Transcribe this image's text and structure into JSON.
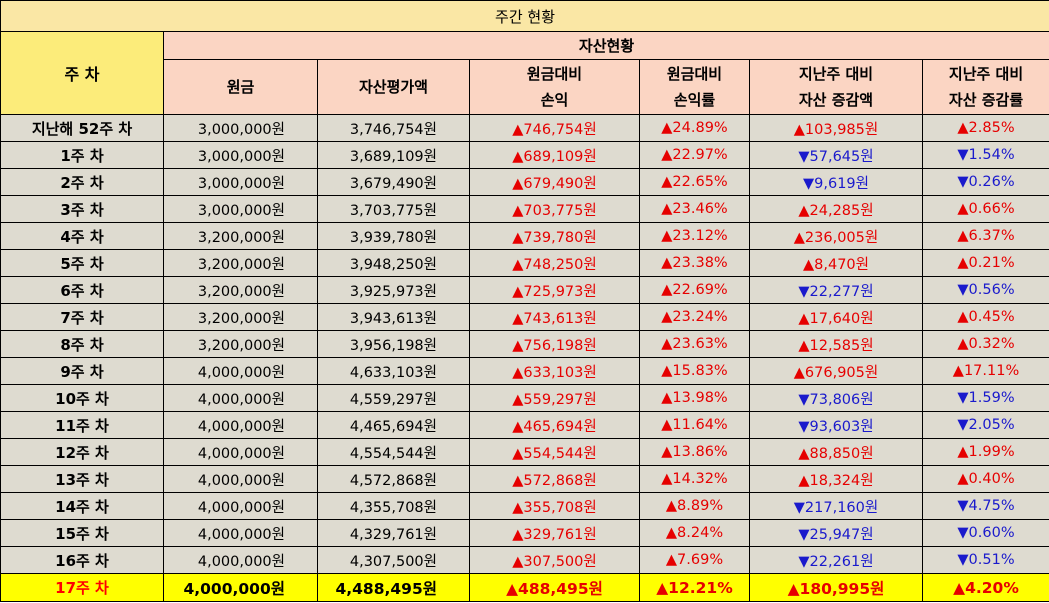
{
  "title": "주간 현황",
  "week_header": "주 차",
  "group_header": "자산현황",
  "columns": [
    {
      "line1": "원금",
      "line2": ""
    },
    {
      "line1": "자산평가액",
      "line2": ""
    },
    {
      "line1": "원금대비",
      "line2": "손익"
    },
    {
      "line1": "원금대비",
      "line2": "손익률"
    },
    {
      "line1": "지난주 대비",
      "line2": "자산 증감액"
    },
    {
      "line1": "지난주 대비",
      "line2": "자산 증감률"
    }
  ],
  "colors": {
    "up": "#e60000",
    "down": "#1a1acc",
    "highlight": "#ffff00",
    "header": "#fbd5c3",
    "title": "#fae7a5"
  },
  "rows": [
    {
      "week": "지난해 52주 차",
      "principal": "3,000,000원",
      "valuation": "3,746,754원",
      "pnl": "▲746,754원",
      "pnl_rate": "▲24.89%",
      "change": "▲103,985원",
      "change_dir": "up",
      "change_rate": "▲2.85%"
    },
    {
      "week": "1주 차",
      "principal": "3,000,000원",
      "valuation": "3,689,109원",
      "pnl": "▲689,109원",
      "pnl_rate": "▲22.97%",
      "change": "▼57,645원",
      "change_dir": "down",
      "change_rate": "▼1.54%"
    },
    {
      "week": "2주 차",
      "principal": "3,000,000원",
      "valuation": "3,679,490원",
      "pnl": "▲679,490원",
      "pnl_rate": "▲22.65%",
      "change": "▼9,619원",
      "change_dir": "down",
      "change_rate": "▼0.26%"
    },
    {
      "week": "3주 차",
      "principal": "3,000,000원",
      "valuation": "3,703,775원",
      "pnl": "▲703,775원",
      "pnl_rate": "▲23.46%",
      "change": "▲24,285원",
      "change_dir": "up",
      "change_rate": "▲0.66%"
    },
    {
      "week": "4주 차",
      "principal": "3,200,000원",
      "valuation": "3,939,780원",
      "pnl": "▲739,780원",
      "pnl_rate": "▲23.12%",
      "change": "▲236,005원",
      "change_dir": "up",
      "change_rate": "▲6.37%"
    },
    {
      "week": "5주 차",
      "principal": "3,200,000원",
      "valuation": "3,948,250원",
      "pnl": "▲748,250원",
      "pnl_rate": "▲23.38%",
      "change": "▲8,470원",
      "change_dir": "up",
      "change_rate": "▲0.21%"
    },
    {
      "week": "6주 차",
      "principal": "3,200,000원",
      "valuation": "3,925,973원",
      "pnl": "▲725,973원",
      "pnl_rate": "▲22.69%",
      "change": "▼22,277원",
      "change_dir": "down",
      "change_rate": "▼0.56%"
    },
    {
      "week": "7주 차",
      "principal": "3,200,000원",
      "valuation": "3,943,613원",
      "pnl": "▲743,613원",
      "pnl_rate": "▲23.24%",
      "change": "▲17,640원",
      "change_dir": "up",
      "change_rate": "▲0.45%"
    },
    {
      "week": "8주 차",
      "principal": "3,200,000원",
      "valuation": "3,956,198원",
      "pnl": "▲756,198원",
      "pnl_rate": "▲23.63%",
      "change": "▲12,585원",
      "change_dir": "up",
      "change_rate": "▲0.32%"
    },
    {
      "week": "9주 차",
      "principal": "4,000,000원",
      "valuation": "4,633,103원",
      "pnl": "▲633,103원",
      "pnl_rate": "▲15.83%",
      "change": "▲676,905원",
      "change_dir": "up",
      "change_rate": "▲17.11%"
    },
    {
      "week": "10주 차",
      "principal": "4,000,000원",
      "valuation": "4,559,297원",
      "pnl": "▲559,297원",
      "pnl_rate": "▲13.98%",
      "change": "▼73,806원",
      "change_dir": "down",
      "change_rate": "▼1.59%"
    },
    {
      "week": "11주 차",
      "principal": "4,000,000원",
      "valuation": "4,465,694원",
      "pnl": "▲465,694원",
      "pnl_rate": "▲11.64%",
      "change": "▼93,603원",
      "change_dir": "down",
      "change_rate": "▼2.05%"
    },
    {
      "week": "12주 차",
      "principal": "4,000,000원",
      "valuation": "4,554,544원",
      "pnl": "▲554,544원",
      "pnl_rate": "▲13.86%",
      "change": "▲88,850원",
      "change_dir": "up",
      "change_rate": "▲1.99%"
    },
    {
      "week": "13주 차",
      "principal": "4,000,000원",
      "valuation": "4,572,868원",
      "pnl": "▲572,868원",
      "pnl_rate": "▲14.32%",
      "change": "▲18,324원",
      "change_dir": "up",
      "change_rate": "▲0.40%"
    },
    {
      "week": "14주 차",
      "principal": "4,000,000원",
      "valuation": "4,355,708원",
      "pnl": "▲355,708원",
      "pnl_rate": "▲8.89%",
      "change": "▼217,160원",
      "change_dir": "down",
      "change_rate": "▼4.75%"
    },
    {
      "week": "15주 차",
      "principal": "4,000,000원",
      "valuation": "4,329,761원",
      "pnl": "▲329,761원",
      "pnl_rate": "▲8.24%",
      "change": "▼25,947원",
      "change_dir": "down",
      "change_rate": "▼0.60%"
    },
    {
      "week": "16주 차",
      "principal": "4,000,000원",
      "valuation": "4,307,500원",
      "pnl": "▲307,500원",
      "pnl_rate": "▲7.69%",
      "change": "▼22,261원",
      "change_dir": "down",
      "change_rate": "▼0.51%"
    },
    {
      "week": "17주 차",
      "principal": "4,000,000원",
      "valuation": "4,488,495원",
      "pnl": "▲488,495원",
      "pnl_rate": "▲12.21%",
      "change": "▲180,995원",
      "change_dir": "up",
      "change_rate": "▲4.20%",
      "highlight": true
    }
  ]
}
